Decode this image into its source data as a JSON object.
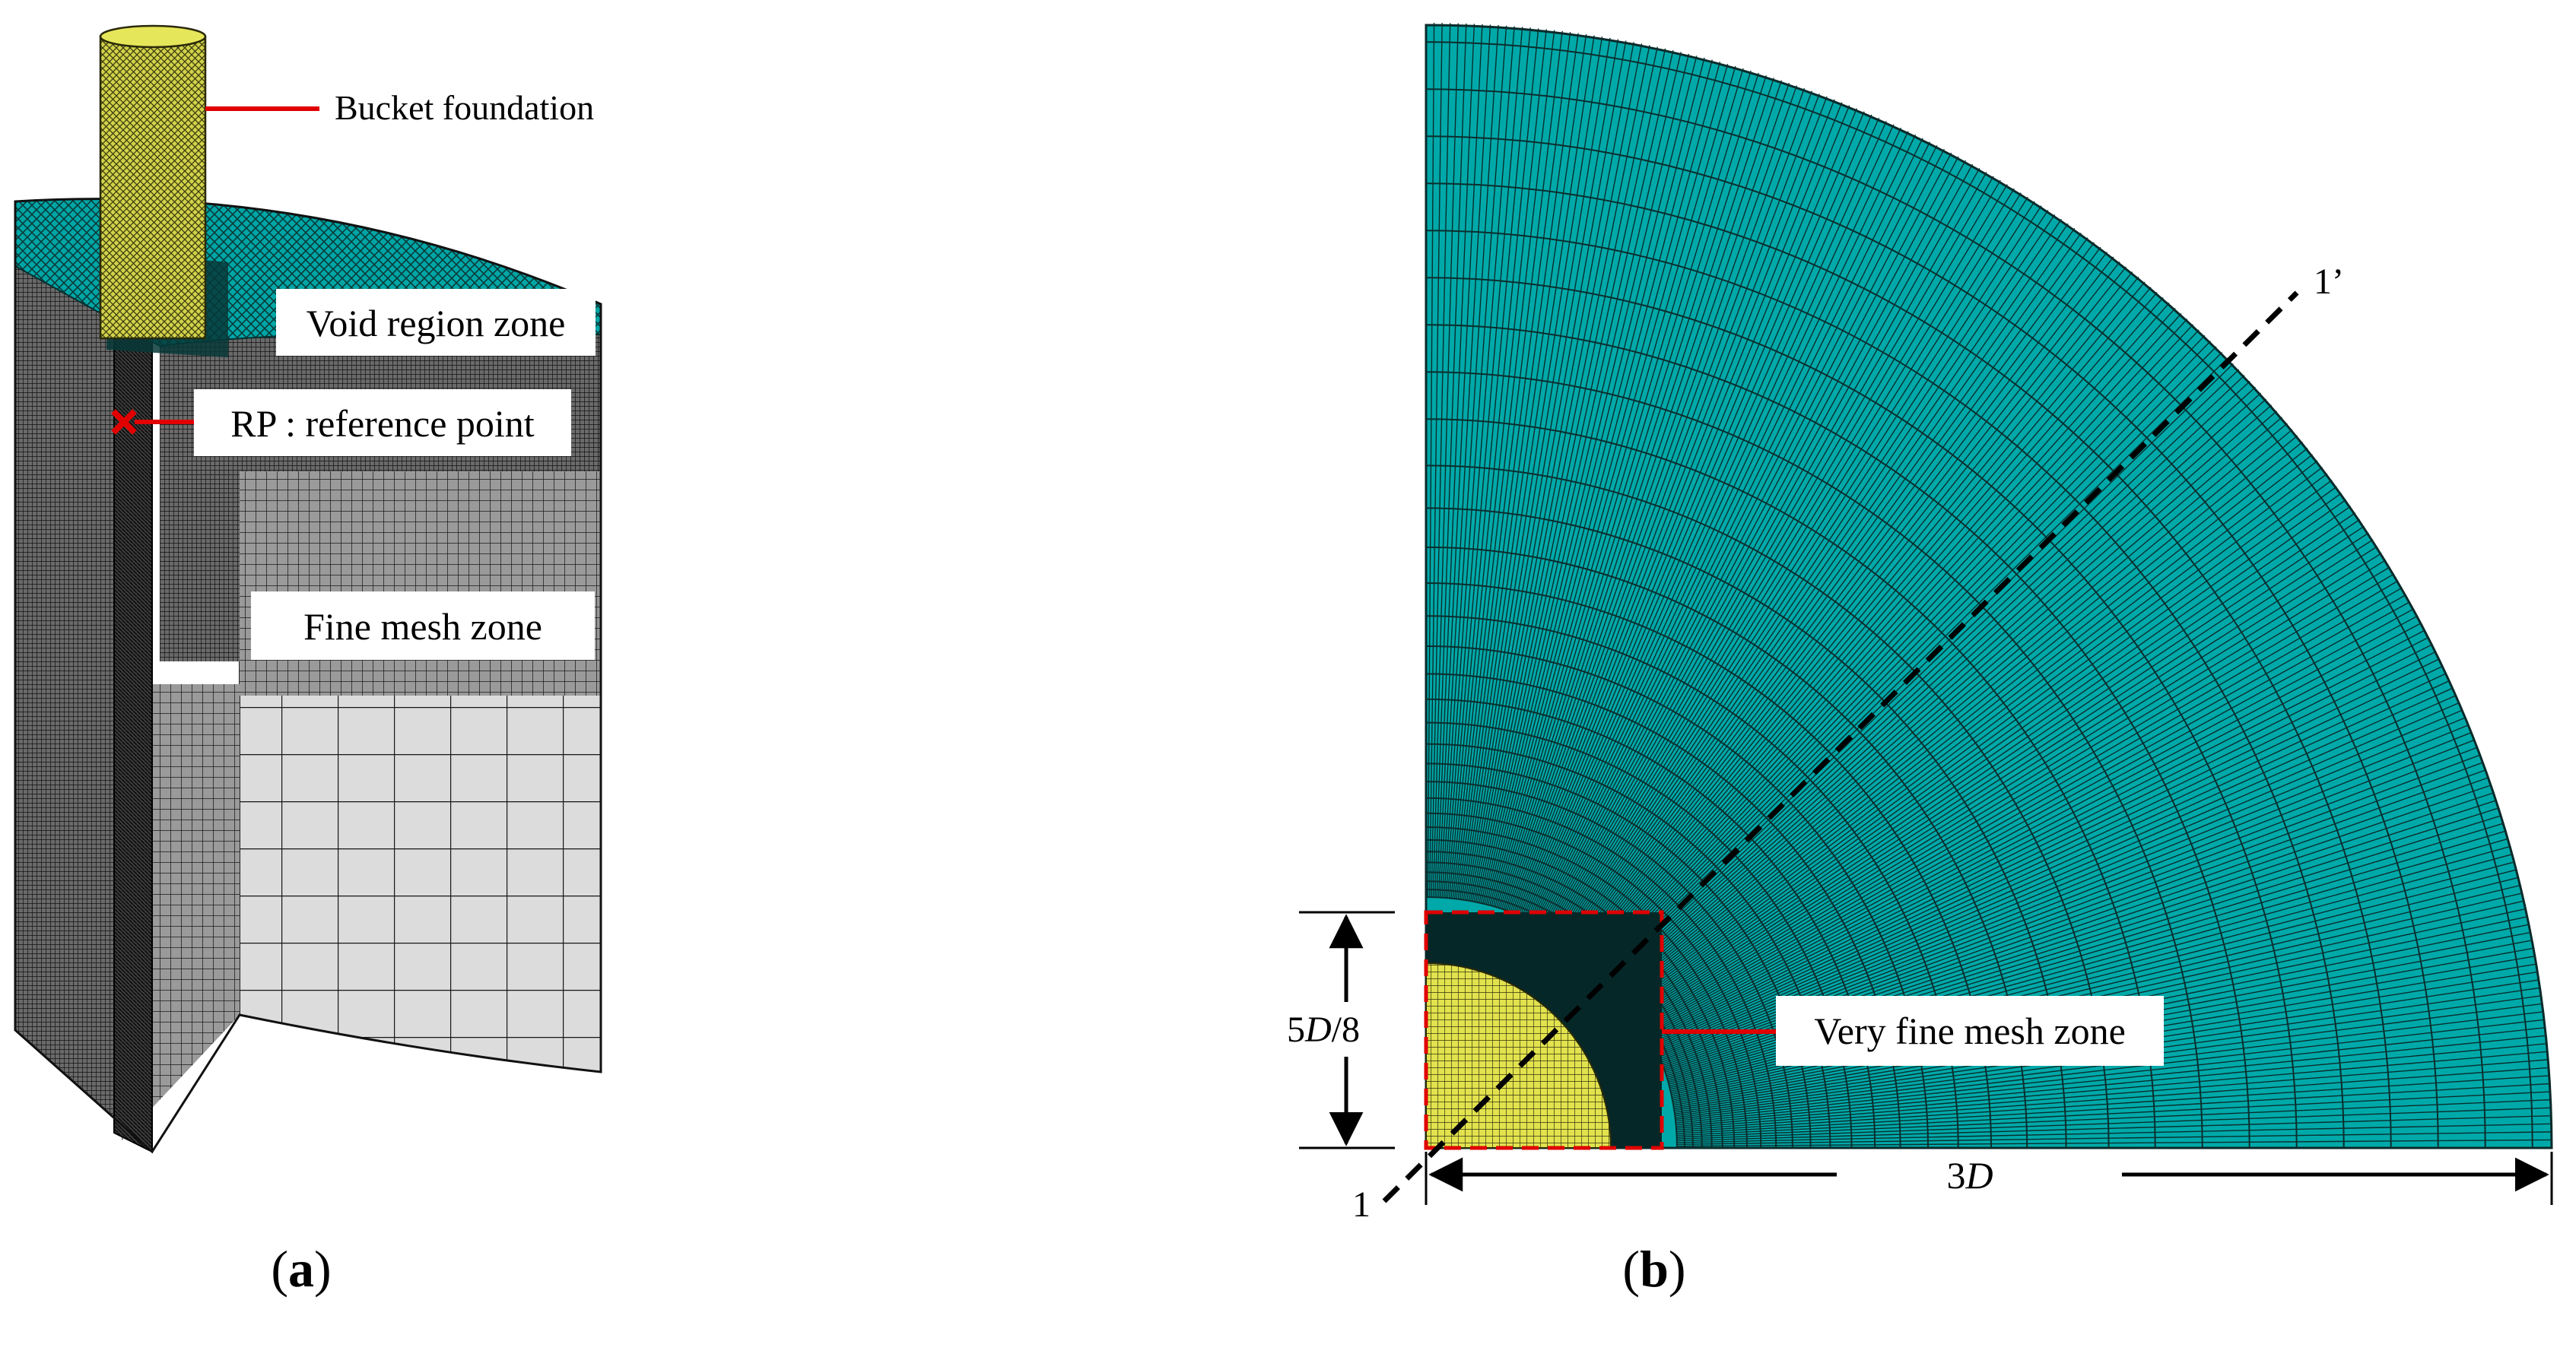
{
  "panel_a": {
    "caption_open": "(",
    "caption_letter": "a",
    "caption_close": ")",
    "labels": {
      "bucket": "Bucket foundation",
      "void": "Void region zone",
      "rp": "RP : reference point",
      "fine": "Fine mesh zone"
    }
  },
  "panel_b": {
    "caption_open": "(",
    "caption_letter": "b",
    "caption_close": ")",
    "labels": {
      "very_fine": "Very fine mesh zone",
      "line_start": "1",
      "line_end": "1’"
    },
    "dims": {
      "height_num": "5",
      "height_var": "D",
      "height_den": "/8",
      "width_num": "3",
      "width_var": "D"
    }
  },
  "colors": {
    "mesh_cyan": "#00a3a3",
    "mesh_line": "#0a2c2c",
    "bucket_yellow": "#d8d84a",
    "soil_grey": "#d6d6d6",
    "annotation_red": "#e00000"
  }
}
